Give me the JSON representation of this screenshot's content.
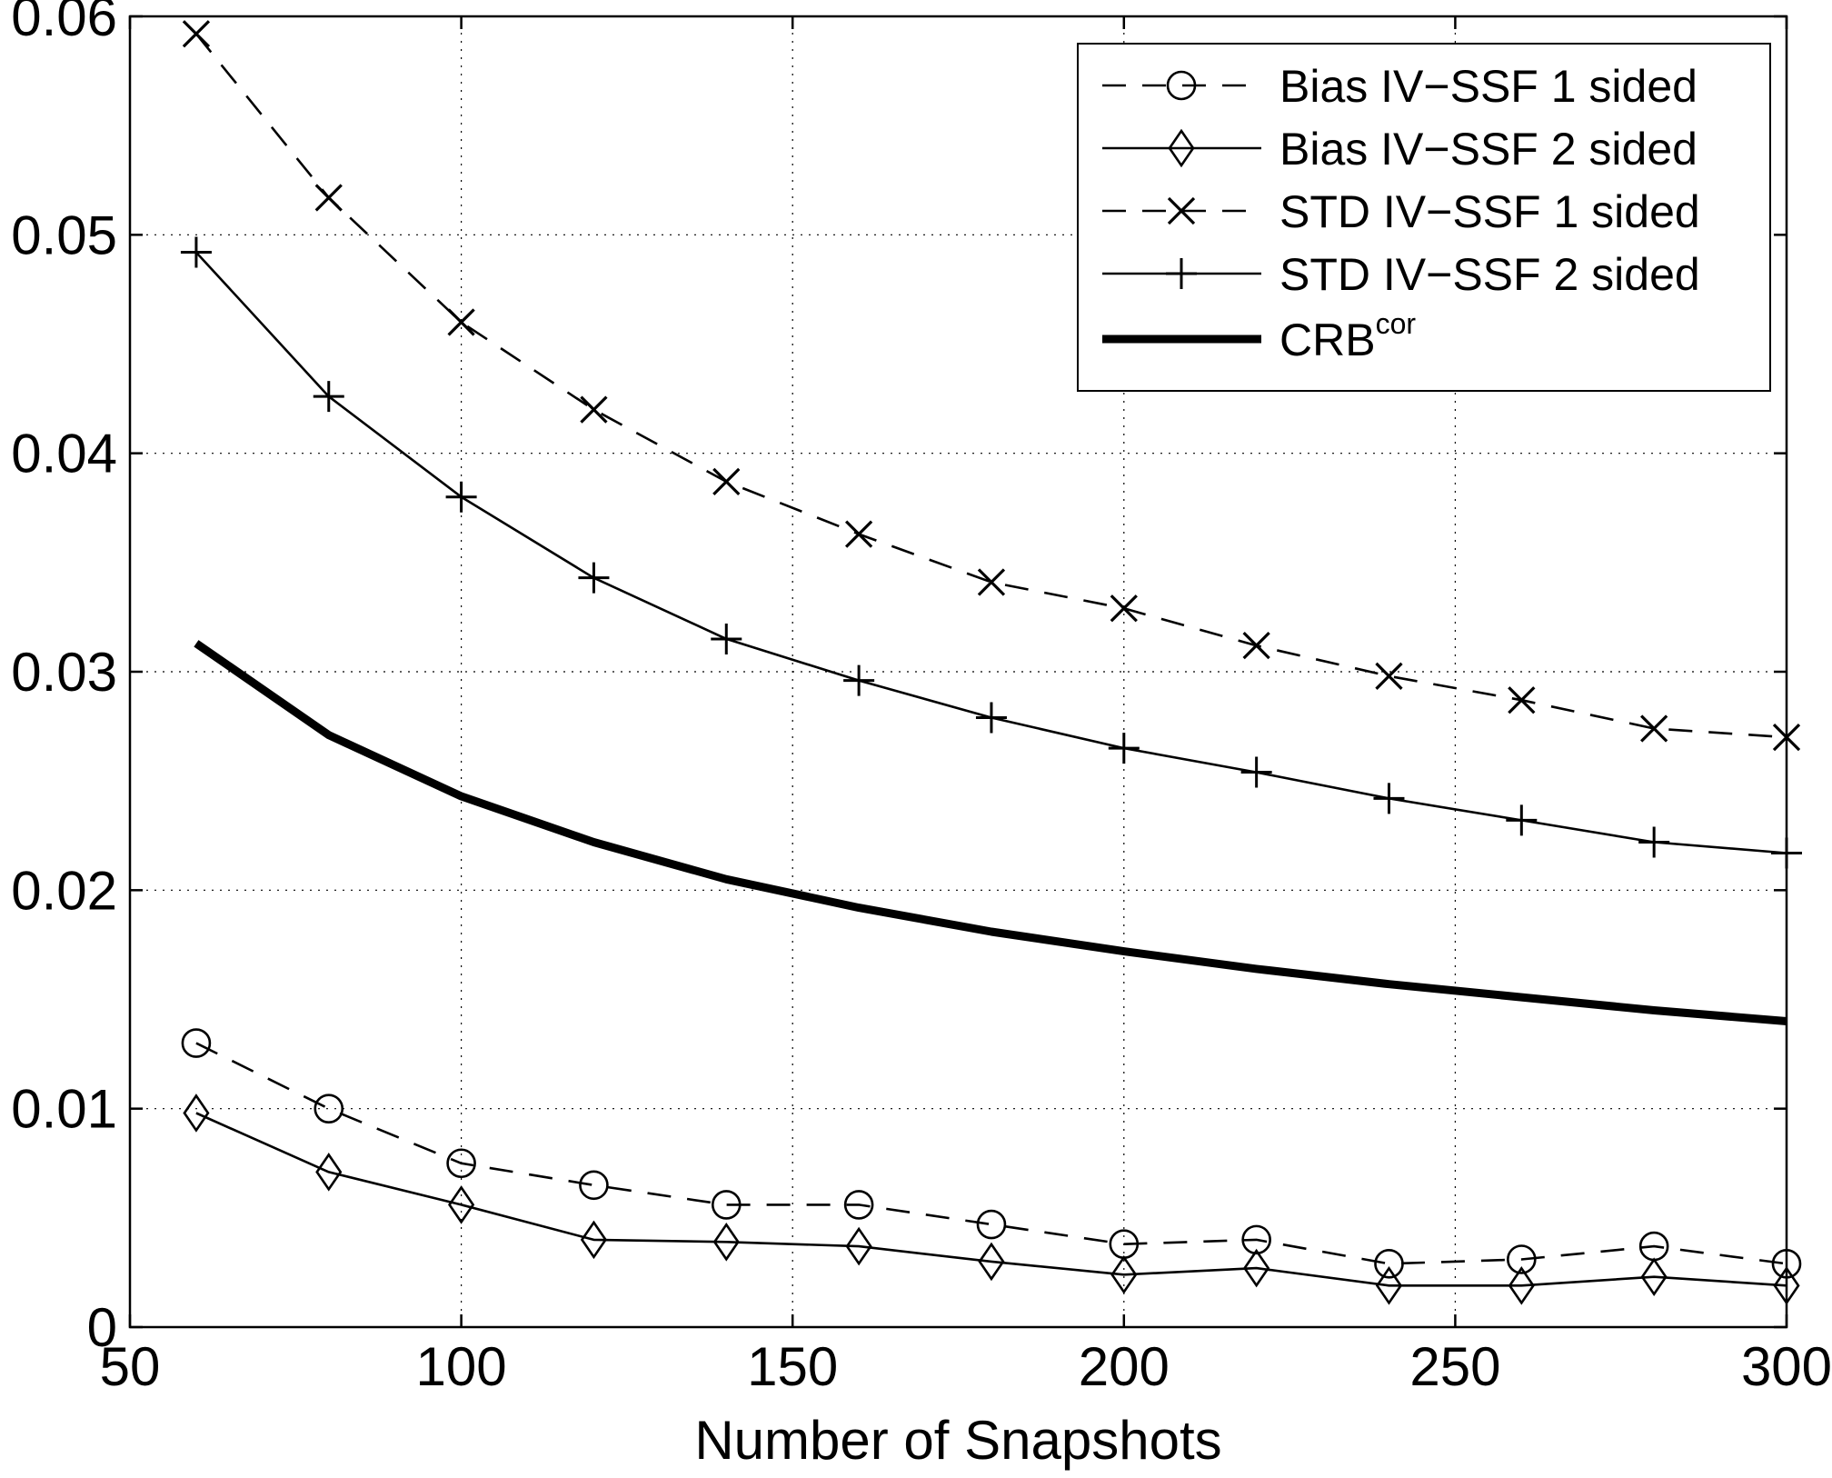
{
  "chart_data": {
    "type": "line",
    "title": "",
    "xlabel": "Number of Snapshots",
    "ylabel": "",
    "xlim": [
      50,
      300
    ],
    "ylim": [
      0,
      0.06
    ],
    "xticks": [
      50,
      100,
      150,
      200,
      250,
      300
    ],
    "yticks": [
      0,
      0.01,
      0.02,
      0.03,
      0.04,
      0.05,
      0.06
    ],
    "xtick_labels": [
      "50",
      "100",
      "150",
      "200",
      "250",
      "300"
    ],
    "ytick_labels": [
      "0",
      "0.01",
      "0.02",
      "0.03",
      "0.04",
      "0.05",
      "0.06"
    ],
    "grid": true,
    "legend_position": "top-right",
    "series": [
      {
        "name": "Bias IV−SSF 1 sided",
        "style": "dashed",
        "marker": "circle",
        "color": "#000000",
        "x": [
          60,
          80,
          100,
          120,
          140,
          160,
          180,
          200,
          220,
          240,
          260,
          280,
          300
        ],
        "y": [
          0.013,
          0.01,
          0.0075,
          0.0065,
          0.0056,
          0.0056,
          0.0047,
          0.0038,
          0.004,
          0.0029,
          0.0031,
          0.0037,
          0.0029
        ]
      },
      {
        "name": "Bias IV−SSF 2 sided",
        "style": "solid",
        "marker": "diamond",
        "color": "#000000",
        "x": [
          60,
          80,
          100,
          120,
          140,
          160,
          180,
          200,
          220,
          240,
          260,
          280,
          300
        ],
        "y": [
          0.0098,
          0.0071,
          0.0056,
          0.004,
          0.0039,
          0.0037,
          0.003,
          0.0024,
          0.0027,
          0.0019,
          0.0019,
          0.0023,
          0.0019
        ]
      },
      {
        "name": "STD IV−SSF 1 sided",
        "style": "dashed",
        "marker": "x",
        "color": "#000000",
        "x": [
          60,
          80,
          100,
          120,
          140,
          160,
          180,
          200,
          220,
          240,
          260,
          280,
          300
        ],
        "y": [
          0.0592,
          0.0517,
          0.046,
          0.042,
          0.0387,
          0.0363,
          0.0341,
          0.0329,
          0.0312,
          0.0298,
          0.0287,
          0.0274,
          0.027
        ]
      },
      {
        "name": "STD IV−SSF 2 sided",
        "style": "solid",
        "marker": "plus",
        "color": "#000000",
        "x": [
          60,
          80,
          100,
          120,
          140,
          160,
          180,
          200,
          220,
          240,
          260,
          280,
          300
        ],
        "y": [
          0.0492,
          0.0426,
          0.038,
          0.0343,
          0.0315,
          0.0296,
          0.0279,
          0.0265,
          0.0254,
          0.0242,
          0.0232,
          0.0222,
          0.0217
        ]
      },
      {
        "name": "CRB",
        "name_superscript": "cor",
        "style": "thick",
        "marker": "none",
        "color": "#000000",
        "x": [
          60,
          80,
          100,
          120,
          140,
          160,
          180,
          200,
          220,
          240,
          260,
          280,
          300
        ],
        "y": [
          0.0313,
          0.0271,
          0.0243,
          0.0222,
          0.0205,
          0.0192,
          0.0181,
          0.0172,
          0.0164,
          0.0157,
          0.0151,
          0.0145,
          0.014
        ]
      }
    ]
  }
}
